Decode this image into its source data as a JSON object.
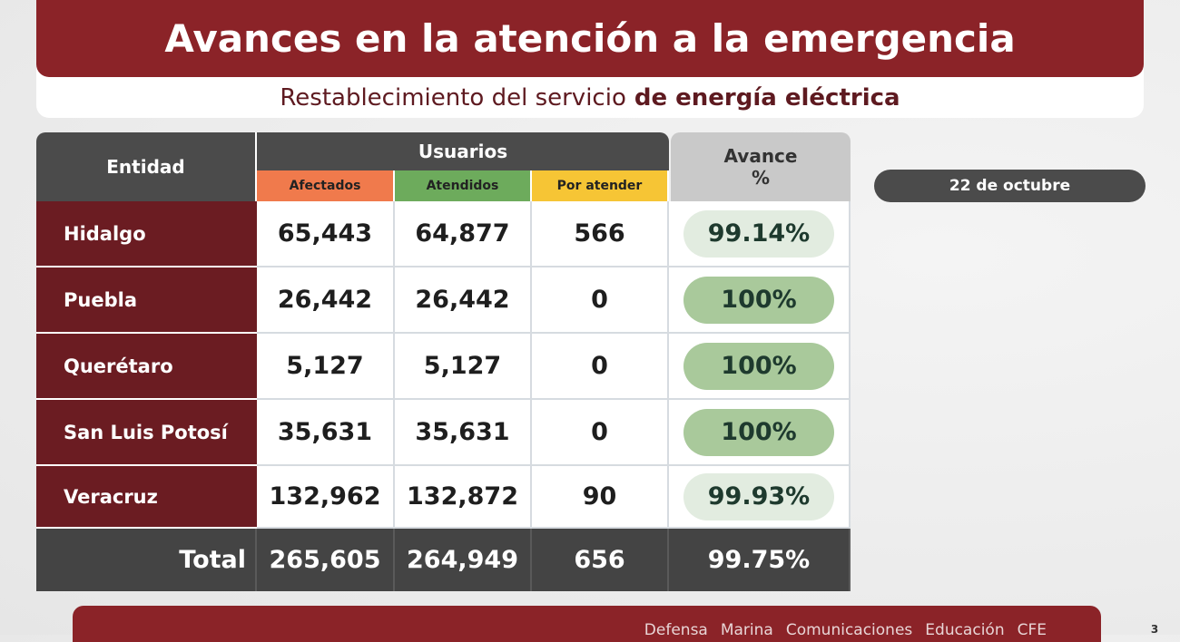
{
  "header": {
    "title": "Avances en la atención a la emergencia",
    "subtitle": "Restablecimiento del servicio",
    "subtitle_bold": "de energía eléctrica"
  },
  "date": "22 de octubre",
  "table": {
    "headers": {
      "entity": "Entidad",
      "group": "Usuarios",
      "sub": [
        "Afectados",
        "Atendidos",
        "Por atender"
      ],
      "progress": [
        "Avance",
        "%"
      ]
    },
    "rows": [
      [
        "Hidalgo",
        "65,443",
        "64,877",
        "566",
        "99.14%"
      ],
      [
        "Puebla",
        "26,442",
        "26,442",
        "0",
        "100%"
      ],
      [
        "Querétaro",
        "5,127",
        "5,127",
        "0",
        "100%"
      ],
      [
        "San Luis Potosí",
        "35,631",
        "35,631",
        "0",
        "100%"
      ],
      [
        "Veracruz",
        "132,962",
        "132,872",
        "90",
        "99.93%"
      ]
    ],
    "total": [
      "Total",
      "265,605",
      "264,949",
      "656",
      "99.75%"
    ]
  },
  "footer": {
    "items": [
      "Defensa",
      "Marina",
      "Comunicaciones",
      "Educación",
      "CFE"
    ],
    "page": "3"
  }
}
